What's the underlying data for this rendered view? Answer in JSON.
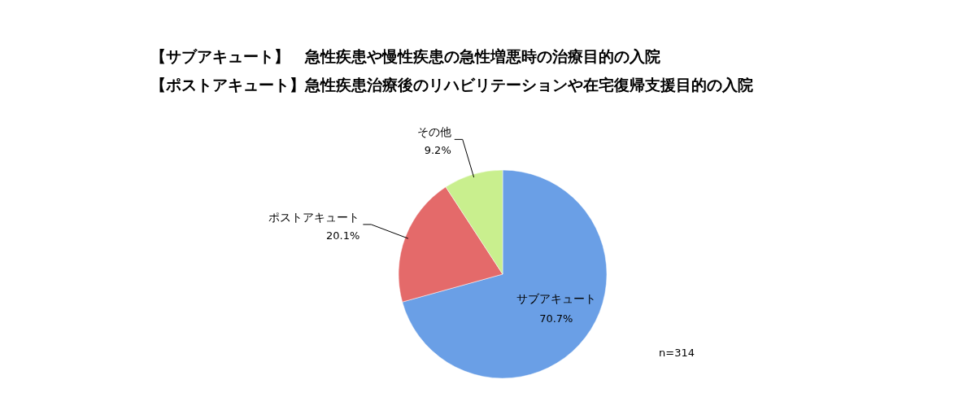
{
  "chart_data": {
    "type": "pie",
    "title": "【サブアキュート】　急性疾患や慢性疾患の急性増悪時の治療目的の入院",
    "subtitle": "【ポストアキュート】急性疾患治療後のリハビリテーションや在宅復帰支援目的の入院",
    "categories": [
      "サブアキュート",
      "ポストアキュート",
      "その他"
    ],
    "values": [
      70.7,
      20.1,
      9.2
    ],
    "colors": [
      "#6a9fe6",
      "#e46a6a",
      "#c9ef8e"
    ],
    "value_labels": [
      "70.7%",
      "20.1%",
      "9.2%"
    ],
    "annotations": [
      "n=314"
    ]
  }
}
